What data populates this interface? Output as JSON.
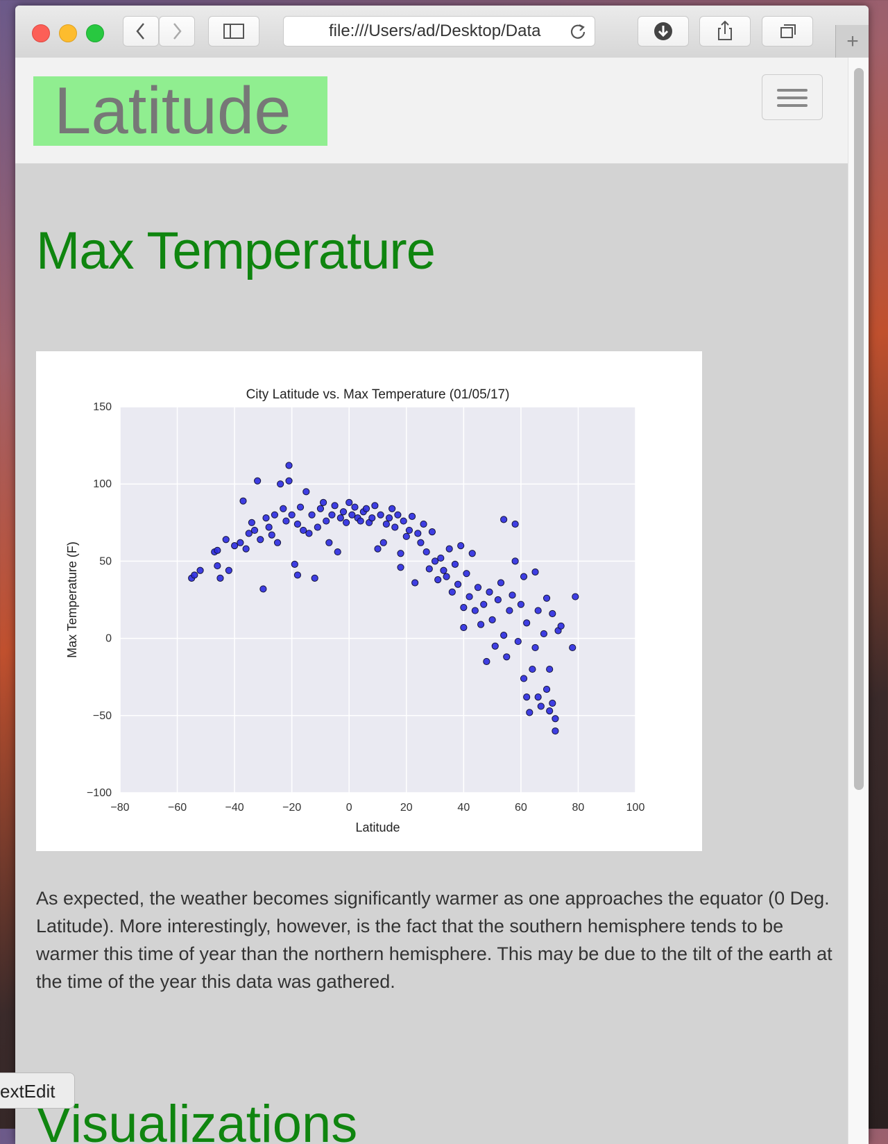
{
  "browser": {
    "url": "file:///Users/ad/Desktop/Data"
  },
  "navbar": {
    "brand": "Latitude"
  },
  "heading": "Max Temperature",
  "chart_data": {
    "type": "scatter",
    "title": "City Latitude vs. Max Temperature (01/05/17)",
    "x_label": "Latitude",
    "y_label": "Max Temperature (F)",
    "color": "#2b2be0",
    "edge_color": "#15153a",
    "grid": true,
    "xlim": [
      -80,
      100
    ],
    "ylim": [
      -100,
      150
    ],
    "xticks": [
      {
        "value": -80,
        "label": "−80"
      },
      {
        "value": -60,
        "label": "−60"
      },
      {
        "value": -40,
        "label": "−40"
      },
      {
        "value": -20,
        "label": "−20"
      },
      0,
      20,
      40,
      60,
      80,
      100
    ],
    "yticks": [
      {
        "value": -100,
        "label": "−100"
      },
      {
        "value": -50,
        "label": "−50"
      },
      0,
      50,
      100,
      150
    ],
    "x": [
      -55,
      -54,
      -52,
      -47,
      -46,
      -46,
      -45,
      -43,
      -42,
      -40,
      -38,
      -37,
      -36,
      -35,
      -34,
      -33,
      -32,
      -31,
      -30,
      -29,
      -28,
      -27,
      -26,
      -25,
      -24,
      -23,
      -22,
      -21,
      -21,
      -20,
      -19,
      -18,
      -18,
      -17,
      -16,
      -15,
      -14,
      -13,
      -12,
      -11,
      -10,
      -9,
      -8,
      -7,
      -6,
      -5,
      -4,
      -3,
      -2,
      -1,
      0,
      1,
      2,
      3,
      4,
      5,
      6,
      7,
      8,
      9,
      10,
      11,
      12,
      13,
      14,
      15,
      16,
      17,
      18,
      18,
      19,
      20,
      21,
      22,
      23,
      24,
      25,
      26,
      27,
      28,
      29,
      30,
      31,
      32,
      33,
      34,
      35,
      36,
      37,
      38,
      39,
      40,
      40,
      41,
      42,
      43,
      44,
      45,
      46,
      47,
      48,
      49,
      50,
      51,
      52,
      53,
      54,
      54,
      55,
      56,
      57,
      58,
      58,
      59,
      60,
      61,
      61,
      62,
      62,
      63,
      64,
      65,
      65,
      66,
      66,
      67,
      68,
      69,
      69,
      70,
      70,
      71,
      71,
      72,
      72,
      73,
      74,
      78,
      79
    ],
    "values": [
      39,
      41,
      44,
      56,
      57,
      47,
      39,
      64,
      44,
      60,
      62,
      89,
      58,
      68,
      75,
      70,
      102,
      64,
      32,
      78,
      72,
      67,
      80,
      62,
      100,
      84,
      76,
      112,
      102,
      80,
      48,
      41,
      74,
      85,
      70,
      95,
      68,
      80,
      39,
      72,
      84,
      88,
      76,
      62,
      80,
      86,
      56,
      78,
      82,
      75,
      88,
      80,
      85,
      78,
      76,
      82,
      84,
      75,
      78,
      86,
      58,
      80,
      62,
      74,
      78,
      84,
      72,
      80,
      55,
      46,
      76,
      66,
      70,
      79,
      36,
      68,
      62,
      74,
      56,
      45,
      69,
      50,
      38,
      52,
      44,
      40,
      58,
      30,
      48,
      35,
      60,
      20,
      7,
      42,
      27,
      55,
      18,
      33,
      9,
      22,
      -15,
      30,
      12,
      -5,
      25,
      36,
      2,
      77,
      -12,
      18,
      28,
      50,
      74,
      -2,
      22,
      -26,
      40,
      -38,
      10,
      -48,
      -20,
      43,
      -6,
      -38,
      18,
      -44,
      3,
      -33,
      26,
      -47,
      -20,
      -42,
      16,
      -52,
      -60,
      5,
      8,
      -6,
      27
    ]
  },
  "paragraph": "As expected, the weather becomes significantly warmer as one approaches the equator (0 Deg. Latitude). More interestingly, however, is the fact that the southern hemisphere tends to be warmer this time of year than the northern hemisphere. This may be due to the tilt of the earth at the time of the year this data was gathered.",
  "next_heading": "Visualizations",
  "dock_label": "extEdit"
}
